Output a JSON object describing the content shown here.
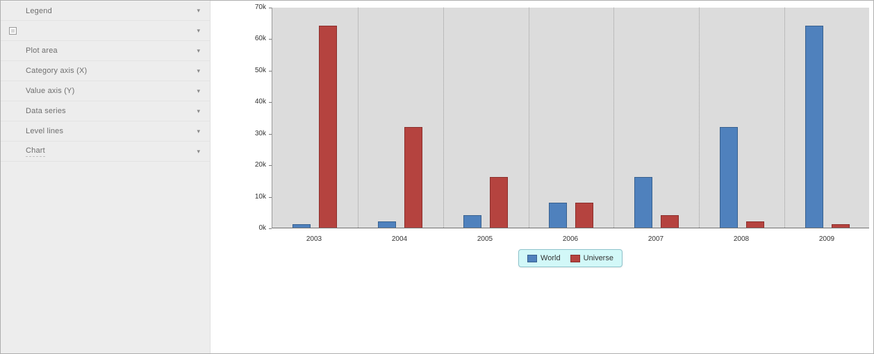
{
  "sidebar": {
    "items": [
      {
        "key": "legend",
        "label": "Legend",
        "icon": null
      },
      {
        "key": "image",
        "label": "",
        "icon": "image-icon"
      },
      {
        "key": "plot-area",
        "label": "Plot area",
        "icon": null
      },
      {
        "key": "category-axis-x",
        "label": "Category axis (X)",
        "icon": null
      },
      {
        "key": "value-axis-y",
        "label": "Value axis (Y)",
        "icon": null
      },
      {
        "key": "data-series",
        "label": "Data series",
        "icon": null
      },
      {
        "key": "level-lines",
        "label": "Level lines",
        "icon": null
      },
      {
        "key": "chart",
        "label": "Chart",
        "icon": null,
        "underline": true
      }
    ]
  },
  "chart_data": {
    "type": "bar",
    "title": "",
    "xlabel": "",
    "ylabel": "",
    "categories": [
      "2003",
      "2004",
      "2005",
      "2006",
      "2007",
      "2008",
      "2009"
    ],
    "series": [
      {
        "name": "World",
        "color": "#4f81bd",
        "border_color": "#38618f",
        "values": [
          1000,
          2000,
          4000,
          8000,
          16000,
          32000,
          64000
        ]
      },
      {
        "name": "Universe",
        "color": "#b5433f",
        "border_color": "#8c2f2c",
        "values": [
          64000,
          32000,
          16000,
          8000,
          4000,
          2000,
          1000
        ]
      }
    ],
    "ylim": [
      0,
      70000
    ],
    "ytick_step": 10000,
    "ytick_labels": [
      "0k",
      "10k",
      "20k",
      "30k",
      "40k",
      "50k",
      "60k",
      "70k"
    ],
    "legend_position": "bottom-center",
    "grid": "vertical-dotted",
    "plot_background": "#dcdcdc",
    "legend_background": "#d2f8f8",
    "legend_border": "#8fc3cc"
  }
}
